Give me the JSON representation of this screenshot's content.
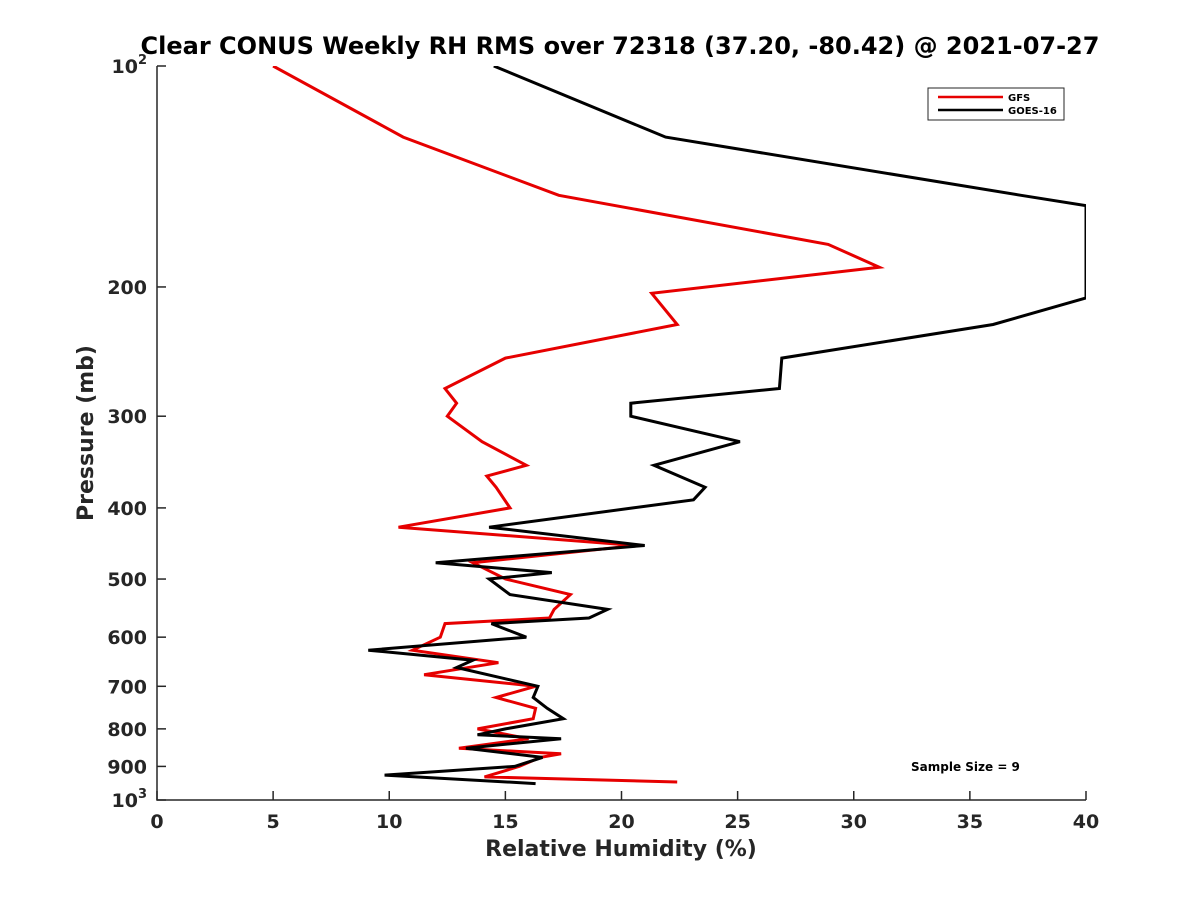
{
  "chart_data": {
    "type": "line",
    "title": "Clear CONUS Weekly RH RMS over 72318 (37.20, -80.42) @ 2021-07-27",
    "xlabel": "Relative Humidity (%)",
    "ylabel": "Pressure (mb)",
    "xlim": [
      0,
      40
    ],
    "ylim": [
      100,
      1000
    ],
    "y_scale": "log",
    "y_reversed": true,
    "grid": false,
    "legend_position": "top-right",
    "x_ticks": [
      0,
      5,
      10,
      15,
      20,
      25,
      30,
      35,
      40
    ],
    "x_tick_labels": [
      "0",
      "5",
      "10",
      "15",
      "20",
      "25",
      "30",
      "35",
      "40"
    ],
    "y_ticks": [
      100,
      200,
      300,
      400,
      500,
      600,
      700,
      800,
      900,
      1000
    ],
    "y_tick_labels": [
      {
        "base": "10",
        "exp": "2"
      },
      {
        "text": "200"
      },
      {
        "text": "300"
      },
      {
        "text": "400"
      },
      {
        "text": "500"
      },
      {
        "text": "600"
      },
      {
        "text": "700"
      },
      {
        "text": "800"
      },
      {
        "text": "900"
      },
      {
        "base": "10",
        "exp": "3"
      }
    ],
    "series": [
      {
        "name": "GFS",
        "color": "#e60000",
        "points": [
          [
            5.0,
            100
          ],
          [
            10.6,
            125
          ],
          [
            17.3,
            150
          ],
          [
            28.9,
            175
          ],
          [
            31.1,
            188
          ],
          [
            21.3,
            204
          ],
          [
            22.4,
            225
          ],
          [
            15.0,
            250
          ],
          [
            12.4,
            275
          ],
          [
            12.9,
            288
          ],
          [
            12.5,
            300
          ],
          [
            14.0,
            325
          ],
          [
            15.9,
            350
          ],
          [
            14.2,
            362
          ],
          [
            14.6,
            375
          ],
          [
            15.2,
            400
          ],
          [
            10.4,
            425
          ],
          [
            20.6,
            450
          ],
          [
            13.6,
            475
          ],
          [
            15.0,
            500
          ],
          [
            17.8,
            525
          ],
          [
            17.1,
            550
          ],
          [
            16.9,
            565
          ],
          [
            12.4,
            575
          ],
          [
            12.2,
            600
          ],
          [
            11.0,
            625
          ],
          [
            14.7,
            650
          ],
          [
            11.5,
            675
          ],
          [
            16.3,
            700
          ],
          [
            14.6,
            725
          ],
          [
            16.3,
            750
          ],
          [
            16.2,
            775
          ],
          [
            13.8,
            800
          ],
          [
            16.0,
            825
          ],
          [
            13.0,
            850
          ],
          [
            17.4,
            865
          ],
          [
            16.5,
            875
          ],
          [
            15.6,
            900
          ],
          [
            14.1,
            930
          ],
          [
            22.4,
            945
          ]
        ]
      },
      {
        "name": "GOES-16",
        "color": "#000000",
        "points": [
          [
            14.5,
            100
          ],
          [
            21.9,
            125
          ],
          [
            37.2,
            150
          ],
          [
            40.0,
            155
          ],
          [
            40.0,
            207
          ],
          [
            36.0,
            225
          ],
          [
            26.9,
            250
          ],
          [
            26.8,
            275
          ],
          [
            20.4,
            288
          ],
          [
            20.4,
            300
          ],
          [
            25.1,
            325
          ],
          [
            21.4,
            350
          ],
          [
            23.6,
            375
          ],
          [
            23.1,
            390
          ],
          [
            20.5,
            400
          ],
          [
            14.3,
            425
          ],
          [
            21.0,
            450
          ],
          [
            12.0,
            475
          ],
          [
            17.0,
            490
          ],
          [
            14.3,
            500
          ],
          [
            15.2,
            525
          ],
          [
            19.4,
            550
          ],
          [
            18.6,
            565
          ],
          [
            14.4,
            575
          ],
          [
            15.9,
            600
          ],
          [
            9.1,
            625
          ],
          [
            13.6,
            645
          ],
          [
            12.9,
            660
          ],
          [
            16.4,
            700
          ],
          [
            16.2,
            725
          ],
          [
            16.8,
            750
          ],
          [
            17.5,
            775
          ],
          [
            15.0,
            800
          ],
          [
            13.8,
            815
          ],
          [
            17.4,
            825
          ],
          [
            13.3,
            850
          ],
          [
            16.6,
            875
          ],
          [
            15.4,
            900
          ],
          [
            9.8,
            925
          ],
          [
            16.3,
            950
          ]
        ]
      }
    ],
    "annotation": "Sample Size = 9"
  }
}
